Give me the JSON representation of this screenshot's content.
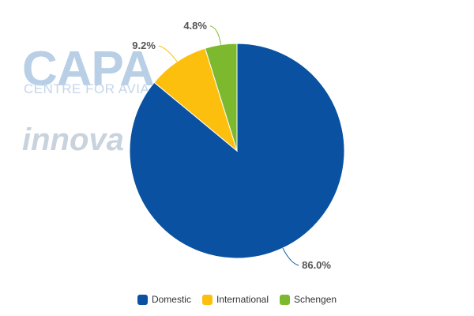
{
  "watermark": {
    "brand": "CAPA",
    "brand_subtitle": "CENTRE FOR AVIA",
    "partner": "innova"
  },
  "chart_data": {
    "type": "pie",
    "title": "",
    "slices": [
      {
        "name": "Domestic",
        "value": 86.0,
        "label": "86.0%",
        "color": "#0a52a1"
      },
      {
        "name": "International",
        "value": 9.2,
        "label": "9.2%",
        "color": "#fcbf0e"
      },
      {
        "name": "Schengen",
        "value": 4.8,
        "label": "4.8%",
        "color": "#7cb92f"
      }
    ],
    "legend_position": "bottom-center"
  }
}
